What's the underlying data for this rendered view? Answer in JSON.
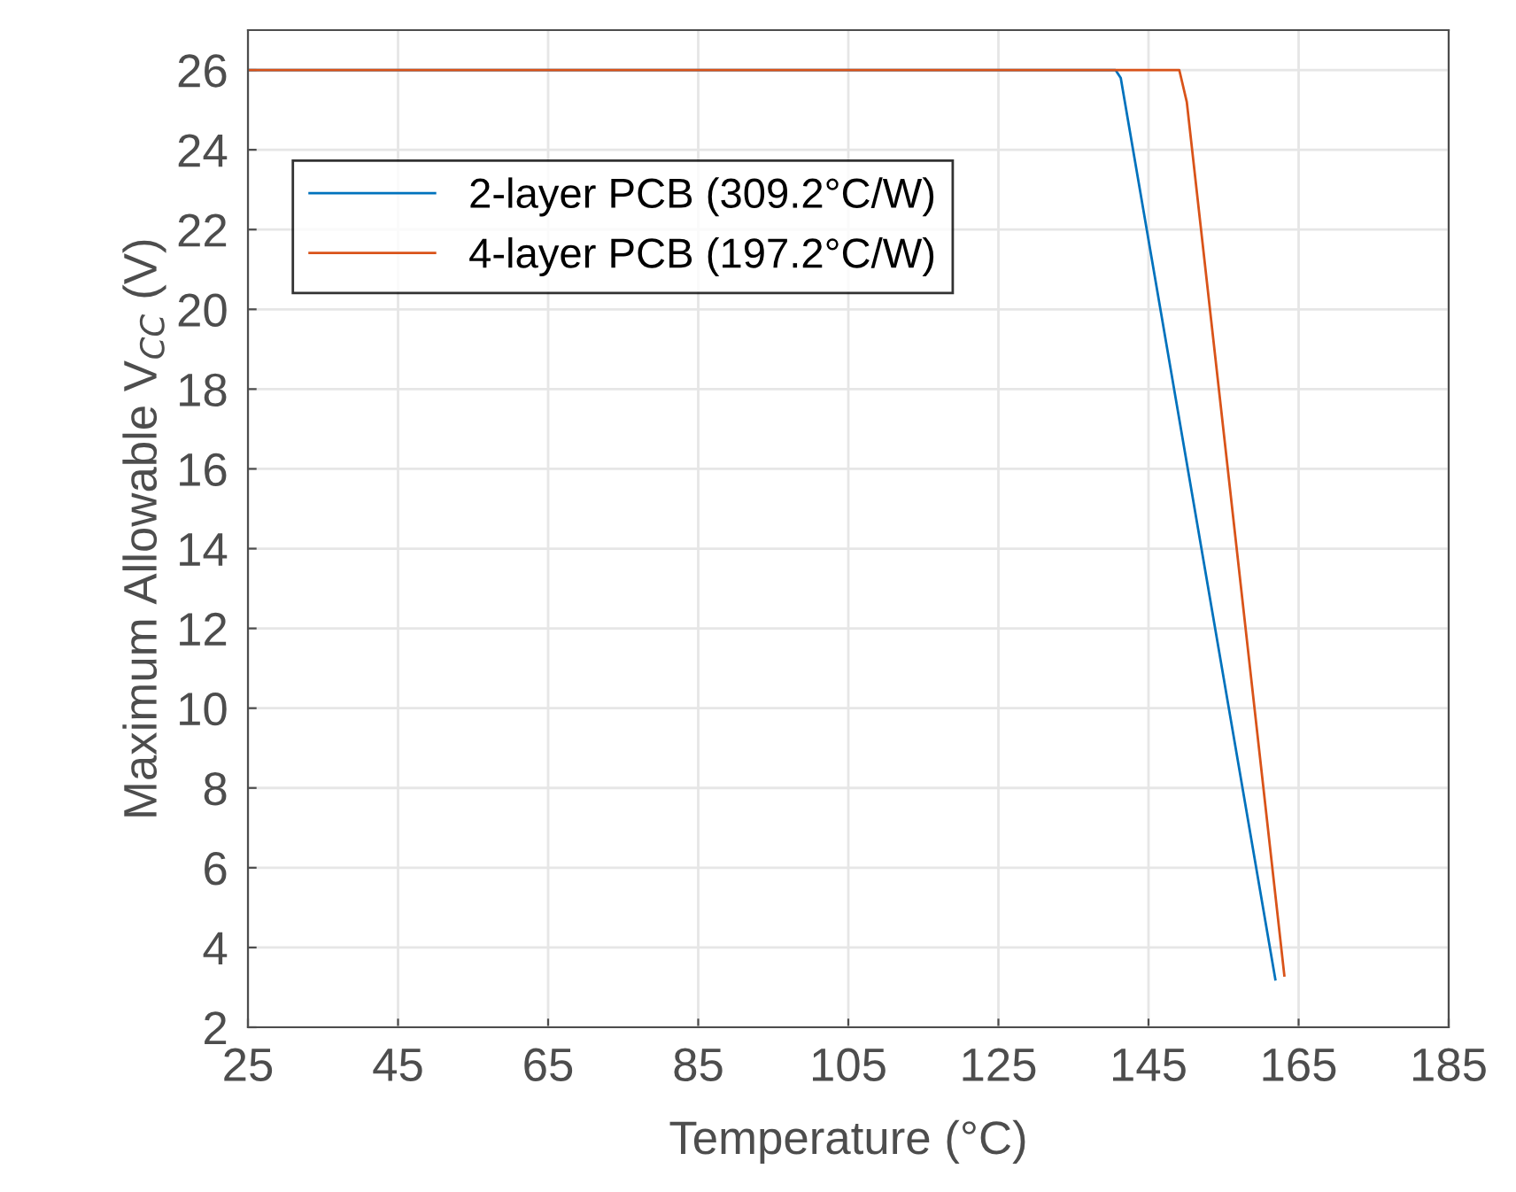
{
  "chart_data": {
    "type": "line",
    "xlabel": "Temperature (°C)",
    "ylabel": "Maximum Allowable V$_{CC}$ (V)",
    "xlim": [
      25,
      185
    ],
    "xticks": [
      25,
      45,
      65,
      85,
      105,
      125,
      145,
      165,
      185
    ],
    "ylim": [
      2,
      27
    ],
    "yticks": [
      2,
      4,
      6,
      8,
      10,
      12,
      14,
      16,
      18,
      20,
      22,
      24,
      26
    ],
    "grid": true,
    "legend": "top left",
    "marker": "none",
    "line_style": "solid",
    "series": [
      {
        "name": "2-layer PCB (309.2°C/W)",
        "color": "#0072bd",
        "x": [
          25,
          140.6,
          141.3,
          161.9
        ],
        "values": [
          26,
          26,
          25.8,
          3.2
        ]
      },
      {
        "name": "4-layer PCB (197.2°C/W)",
        "color": "#d95319",
        "x": [
          25,
          149.1,
          150.1,
          163.1
        ],
        "values": [
          26,
          26,
          25.2,
          3.3
        ]
      }
    ]
  }
}
